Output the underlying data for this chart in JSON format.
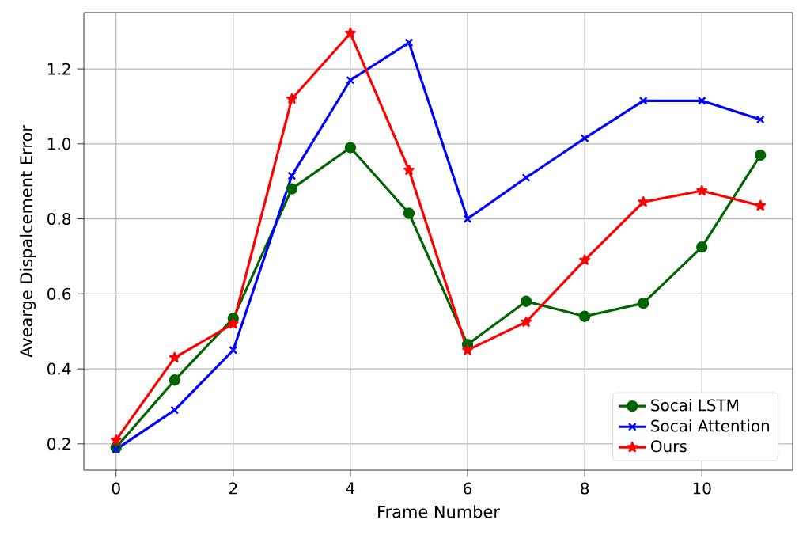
{
  "chart_data": {
    "type": "line",
    "xlabel": "Frame Number",
    "ylabel": "Avearge Dispalcement Error",
    "x": [
      0,
      1,
      2,
      3,
      4,
      5,
      6,
      7,
      8,
      9,
      10,
      11
    ],
    "series": [
      {
        "name": "Socai LSTM",
        "color": "#006400",
        "marker": "circle",
        "values": [
          0.19,
          0.37,
          0.535,
          0.88,
          0.99,
          0.815,
          0.465,
          0.58,
          0.54,
          0.575,
          0.725,
          0.97
        ]
      },
      {
        "name": "Socai Attention",
        "color": "#0000ff",
        "marker": "cross",
        "values": [
          0.185,
          0.29,
          0.45,
          0.915,
          1.17,
          1.27,
          0.8,
          0.91,
          1.015,
          1.115,
          1.115,
          1.065
        ]
      },
      {
        "name": "Ours",
        "color": "#ff0000",
        "marker": "star",
        "values": [
          0.21,
          0.43,
          0.52,
          1.12,
          1.295,
          0.93,
          0.45,
          0.525,
          0.69,
          0.845,
          0.875,
          0.835
        ]
      }
    ],
    "xlim": [
      -0.55,
      11.55
    ],
    "ylim": [
      0.13,
      1.35
    ],
    "xticks": [
      0,
      2,
      4,
      6,
      8,
      10
    ],
    "yticks": [
      0.2,
      0.4,
      0.6,
      0.8,
      {
        "value": 1.0,
        "label": "1.0"
      },
      1.2
    ],
    "grid": true,
    "legend": "bottom right",
    "line_style": "solid"
  }
}
